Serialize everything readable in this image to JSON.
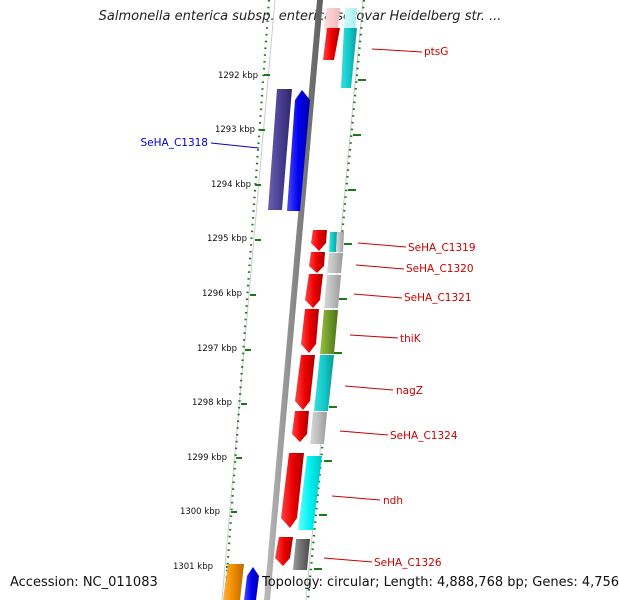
{
  "title": "Salmonella enterica subsp. enterica serovar Heidelberg str. ...",
  "footer": {
    "accession": "Accession: NC_011083",
    "topology": "Topology: circular; Length: 4,888,768 bp; Genes: 4,756"
  },
  "colors": {
    "label_forward": "#0000cc",
    "label_reverse": "#cc0000",
    "backbone": "#8a8a8a",
    "ticks": "#1a7a1a"
  },
  "ticks": [
    "1292 kbp",
    "1293 kbp",
    "1294 kbp",
    "1295 kbp",
    "1296 kbp",
    "1297 kbp",
    "1298 kbp",
    "1299 kbp",
    "1300 kbp",
    "1301 kbp"
  ],
  "genes": [
    {
      "name": "ptsG",
      "strand": "reverse"
    },
    {
      "name": "SeHA_C1318",
      "strand": "forward"
    },
    {
      "name": "SeHA_C1319",
      "strand": "reverse"
    },
    {
      "name": "SeHA_C1320",
      "strand": "reverse"
    },
    {
      "name": "SeHA_C1321",
      "strand": "reverse"
    },
    {
      "name": "thiK",
      "strand": "reverse"
    },
    {
      "name": "nagZ",
      "strand": "reverse"
    },
    {
      "name": "SeHA_C1324",
      "strand": "reverse"
    },
    {
      "name": "ndh",
      "strand": "reverse"
    },
    {
      "name": "SeHA_C1326",
      "strand": "reverse"
    }
  ]
}
